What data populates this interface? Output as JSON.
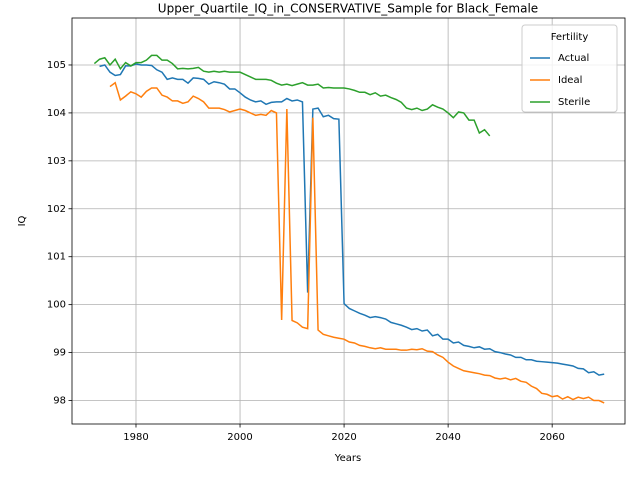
{
  "chart_data": {
    "type": "line",
    "title": "Upper_Quartile_IQ_in_CONSERVATIVE_Sample for Black_Female",
    "x_label": "Years",
    "y_label": "IQ",
    "legend_title": "Fertility",
    "legend_position": "upper right",
    "grid": true,
    "x": [
      1972,
      1973,
      1974,
      1975,
      1976,
      1977,
      1978,
      1979,
      1980,
      1981,
      1982,
      1983,
      1984,
      1985,
      1986,
      1987,
      1988,
      1989,
      1990,
      1991,
      1992,
      1993,
      1994,
      1995,
      1996,
      1997,
      1998,
      1999,
      2000,
      2001,
      2002,
      2003,
      2004,
      2005,
      2006,
      2007,
      2008,
      2009,
      2010,
      2011,
      2012,
      2013,
      2014,
      2015,
      2016,
      2017,
      2018,
      2019,
      2020,
      2021,
      2022,
      2023,
      2024,
      2025,
      2026,
      2027,
      2028,
      2029,
      2030,
      2031,
      2032,
      2033,
      2034,
      2035,
      2036,
      2037,
      2038,
      2039,
      2040,
      2041,
      2042,
      2043,
      2044,
      2045,
      2046,
      2047,
      2048,
      2049,
      2050,
      2051,
      2052,
      2053,
      2054,
      2055,
      2056,
      2057,
      2058,
      2059,
      2060,
      2061,
      2062,
      2063,
      2064,
      2065,
      2066,
      2067,
      2068,
      2069,
      2070
    ],
    "series": [
      {
        "name": "Actual",
        "color": "#1f77b4",
        "values": [
          null,
          104.97,
          105.0,
          104.85,
          104.78,
          104.8,
          104.98,
          104.98,
          105.02,
          105.0,
          105.0,
          104.99,
          104.9,
          104.85,
          104.7,
          104.73,
          104.7,
          104.7,
          104.62,
          104.73,
          104.72,
          104.7,
          104.6,
          104.65,
          104.63,
          104.6,
          104.5,
          104.5,
          104.42,
          104.33,
          104.27,
          104.23,
          104.25,
          104.18,
          104.22,
          104.23,
          104.23,
          104.3,
          104.25,
          104.27,
          104.23,
          100.25,
          104.08,
          104.1,
          103.92,
          103.95,
          103.88,
          103.87,
          100.02,
          99.92,
          99.87,
          99.82,
          99.78,
          99.73,
          99.75,
          99.73,
          99.7,
          99.63,
          99.6,
          99.57,
          99.53,
          99.48,
          99.5,
          99.45,
          99.47,
          99.35,
          99.38,
          99.28,
          99.28,
          99.2,
          99.22,
          99.15,
          99.13,
          99.1,
          99.12,
          99.07,
          99.08,
          99.02,
          99.0,
          98.97,
          98.95,
          98.9,
          98.9,
          98.85,
          98.85,
          98.82,
          98.81,
          98.8,
          98.79,
          98.78,
          98.76,
          98.74,
          98.72,
          98.67,
          98.66,
          98.58,
          98.6,
          98.53,
          98.55
        ]
      },
      {
        "name": "Ideal",
        "color": "#ff7f0e",
        "values": [
          null,
          null,
          null,
          104.55,
          104.63,
          104.27,
          104.35,
          104.44,
          104.4,
          104.33,
          104.45,
          104.52,
          104.52,
          104.37,
          104.33,
          104.25,
          104.25,
          104.2,
          104.23,
          104.35,
          104.3,
          104.23,
          104.1,
          104.1,
          104.1,
          104.07,
          104.02,
          104.05,
          104.08,
          104.05,
          104.0,
          103.95,
          103.97,
          103.95,
          104.05,
          104.0,
          99.68,
          104.08,
          99.67,
          99.62,
          99.53,
          99.5,
          103.9,
          99.47,
          99.38,
          99.35,
          99.32,
          99.3,
          99.28,
          99.22,
          99.2,
          99.15,
          99.13,
          99.1,
          99.08,
          99.1,
          99.07,
          99.07,
          99.07,
          99.05,
          99.05,
          99.07,
          99.06,
          99.08,
          99.03,
          99.02,
          98.95,
          98.9,
          98.8,
          98.72,
          98.67,
          98.62,
          98.6,
          98.58,
          98.56,
          98.53,
          98.52,
          98.47,
          98.45,
          98.47,
          98.43,
          98.46,
          98.4,
          98.38,
          98.3,
          98.25,
          98.15,
          98.13,
          98.08,
          98.1,
          98.03,
          98.08,
          98.02,
          98.07,
          98.04,
          98.07,
          98.0,
          98.0,
          97.95
        ]
      },
      {
        "name": "Sterile",
        "color": "#2ca02c",
        "values": [
          105.03,
          105.12,
          105.15,
          105.0,
          105.12,
          104.92,
          105.05,
          104.98,
          105.05,
          105.05,
          105.1,
          105.2,
          105.2,
          105.1,
          105.1,
          105.03,
          104.92,
          104.93,
          104.92,
          104.93,
          104.95,
          104.87,
          104.85,
          104.87,
          104.85,
          104.87,
          104.85,
          104.85,
          104.85,
          104.8,
          104.75,
          104.7,
          104.7,
          104.7,
          104.68,
          104.62,
          104.58,
          104.6,
          104.57,
          104.6,
          104.63,
          104.58,
          104.58,
          104.6,
          104.52,
          104.53,
          104.52,
          104.52,
          104.52,
          104.5,
          104.47,
          104.43,
          104.43,
          104.38,
          104.42,
          104.35,
          104.37,
          104.32,
          104.28,
          104.22,
          104.1,
          104.07,
          104.1,
          104.05,
          104.08,
          104.17,
          104.12,
          104.08,
          104.0,
          103.9,
          104.02,
          104.0,
          103.85,
          103.85,
          103.58,
          103.65,
          103.52,
          null,
          null,
          null,
          null,
          null,
          null,
          null,
          null,
          null,
          null,
          null,
          null,
          null,
          null,
          null,
          null,
          null,
          null,
          null,
          null,
          null,
          null
        ]
      }
    ],
    "xlim": [
      1967.7,
      2074.0
    ],
    "xticks": [
      1980,
      2000,
      2020,
      2040,
      2060
    ],
    "ylim": [
      97.51,
      105.98
    ],
    "yticks": [
      98,
      99,
      100,
      101,
      102,
      103,
      104,
      105
    ]
  }
}
